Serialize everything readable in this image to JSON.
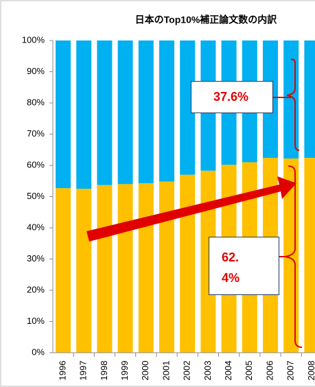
{
  "chart_data": {
    "type": "stacked_bar",
    "title": "日本のTop10%補正論文数の内訳",
    "categories": [
      "1996",
      "1997",
      "1998",
      "1999",
      "2000",
      "2001",
      "2002",
      "2003",
      "2004",
      "2005",
      "2006",
      "2007",
      "2008"
    ],
    "series": [
      {
        "color": "#ffc000",
        "values": [
          52.7,
          52.5,
          53.7,
          54,
          54.3,
          54.8,
          57,
          58.3,
          60.2,
          61,
          62.4,
          62.2,
          62.4
        ]
      },
      {
        "color": "#00b0f0",
        "values": [
          47.3,
          47.5,
          46.3,
          46,
          45.7,
          45.2,
          43,
          41.7,
          39.8,
          39,
          37.6,
          37.8,
          37.6
        ]
      }
    ],
    "ylim": [
      0,
      100
    ],
    "yticks": [
      {
        "value": 0,
        "label": "0%"
      },
      {
        "value": 10,
        "label": "10%"
      },
      {
        "value": 20,
        "label": "20%"
      },
      {
        "value": 30,
        "label": "30%"
      },
      {
        "value": 40,
        "label": "40%"
      },
      {
        "value": 50,
        "label": "50%"
      },
      {
        "value": 60,
        "label": "60%"
      },
      {
        "value": 70,
        "label": "70%"
      },
      {
        "value": 80,
        "label": "80%"
      },
      {
        "value": 90,
        "label": "90%"
      },
      {
        "value": 100,
        "label": "100%"
      }
    ],
    "annotations": [
      "37.6%",
      "62.4%"
    ]
  }
}
